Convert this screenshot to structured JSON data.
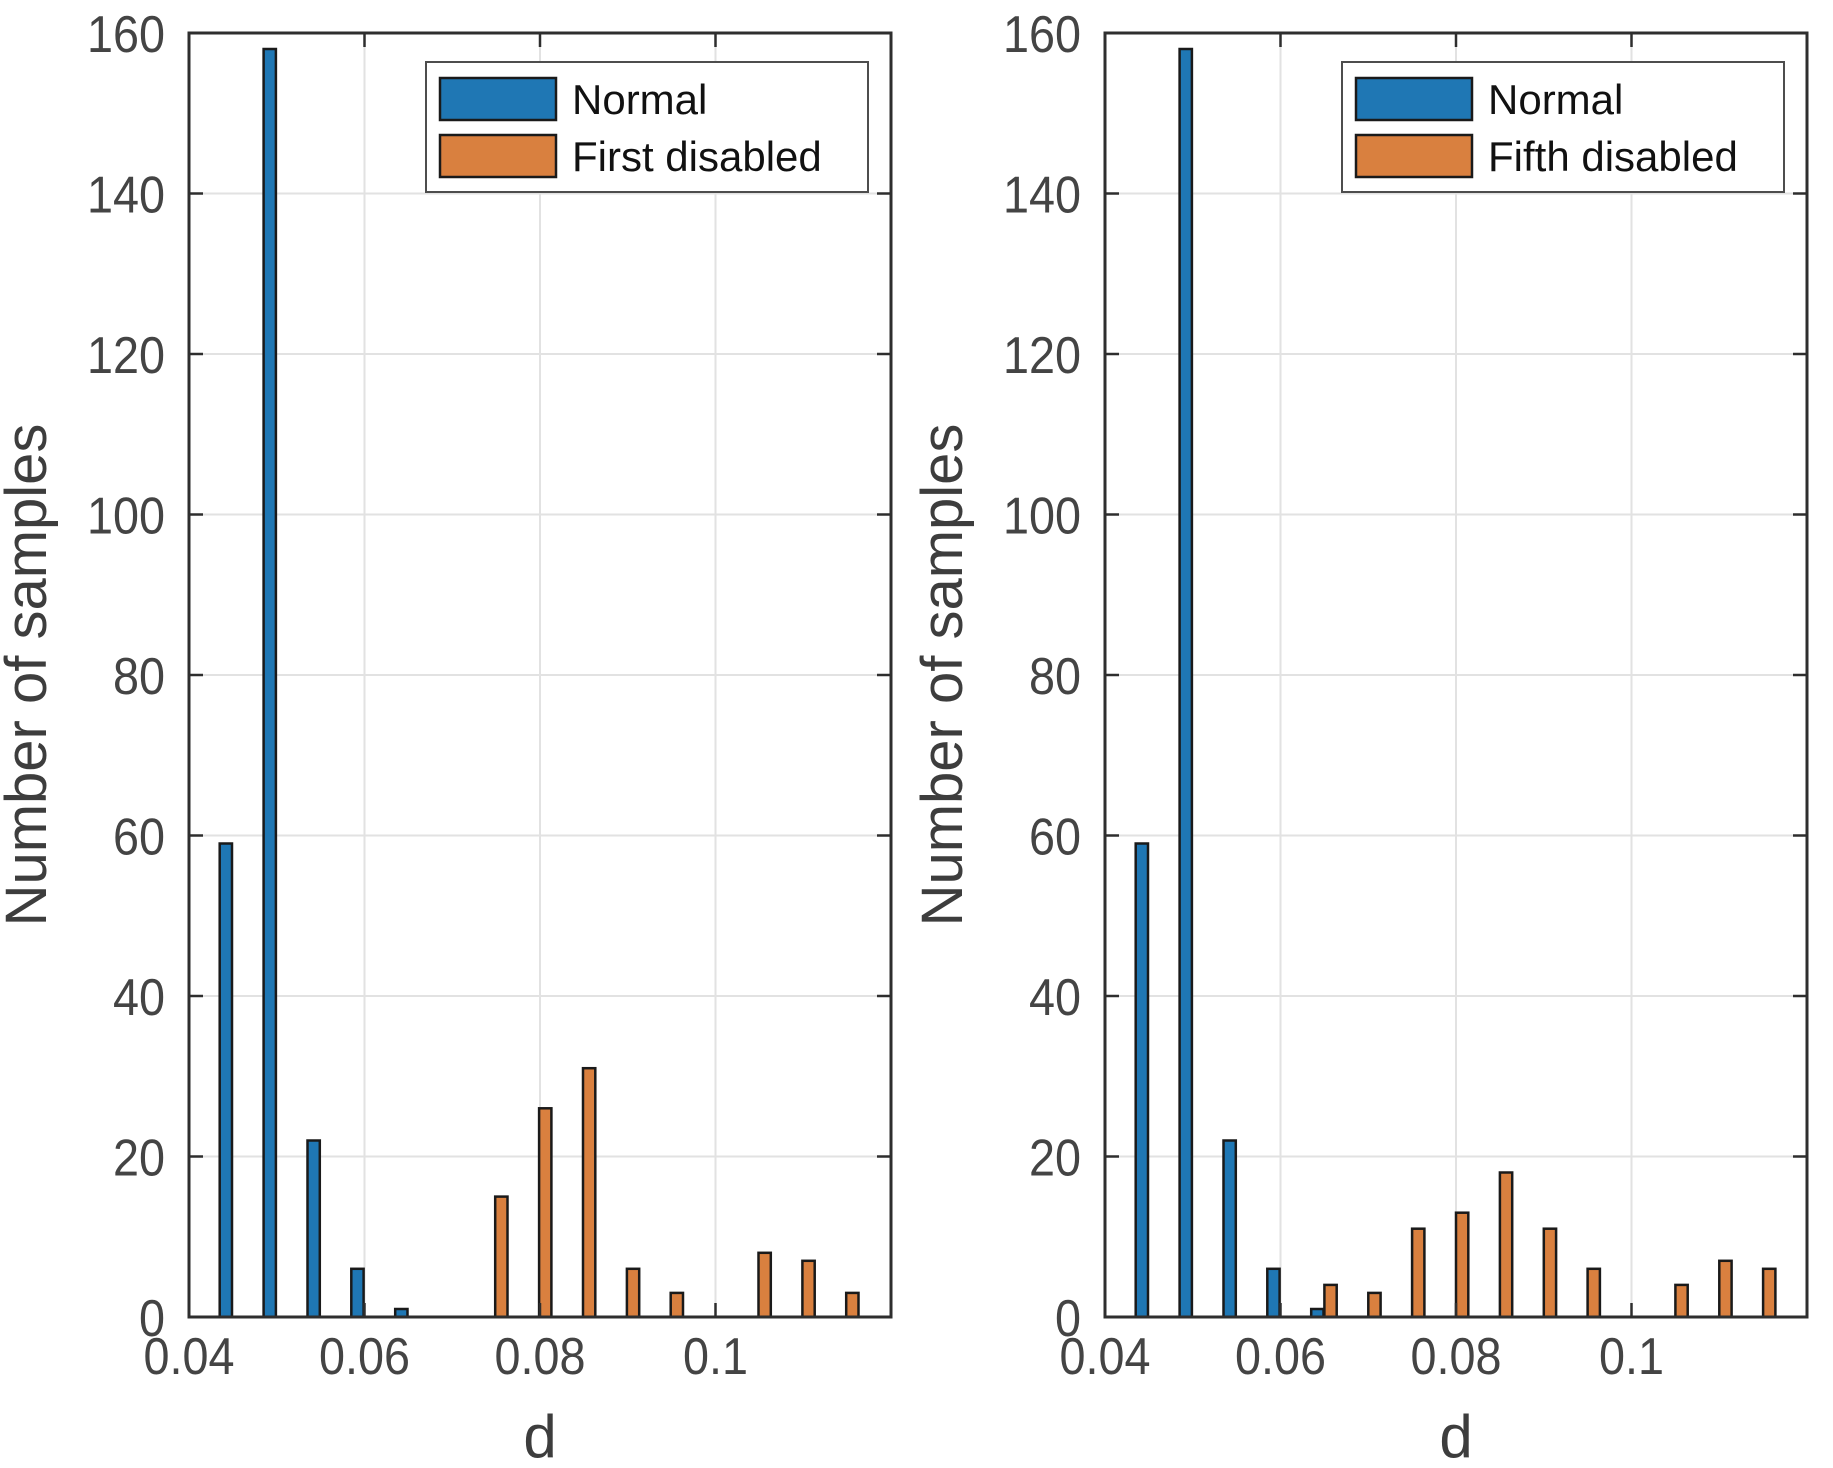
{
  "figure": {
    "background": "#ffffff",
    "box_color": "#2e2e2e",
    "grid_color": "#e2e2e2",
    "tick_label_color": "#444444",
    "axis_label_color": "#3d3d3d",
    "legend_text_color": "#111111",
    "legend_border_color": "#4d4d4d",
    "bar_edge_color": "#1a1a1a",
    "series_colors": {
      "normal": "#1f77b4",
      "disabled": "#d9803f"
    }
  },
  "chart_data": [
    {
      "type": "bar",
      "title": "",
      "xlabel": "d",
      "ylabel": "Number of samples",
      "xlim": [
        0.04,
        0.12
      ],
      "ylim": [
        0,
        160
      ],
      "grid": true,
      "xticks": [
        0.04,
        0.06,
        0.08,
        0.1
      ],
      "xtick_labels": [
        "0.04",
        "0.06",
        "0.08",
        "0.1"
      ],
      "yticks": [
        0,
        20,
        40,
        60,
        80,
        100,
        120,
        140,
        160
      ],
      "ytick_labels": [
        "0",
        "20",
        "40",
        "60",
        "80",
        "100",
        "120",
        "140",
        "160"
      ],
      "legend_position": "northeast",
      "legend": [
        "Normal",
        "First disabled"
      ],
      "bar_width": 0.0014,
      "series": [
        {
          "name": "Normal",
          "color_key": "normal",
          "x": [
            0.0442,
            0.0492,
            0.0542,
            0.0592,
            0.0642
          ],
          "values": [
            59,
            158,
            22,
            6,
            1
          ]
        },
        {
          "name": "First disabled",
          "color_key": "disabled",
          "x": [
            0.0756,
            0.0806,
            0.0856,
            0.0906,
            0.0956,
            0.1056,
            0.1106,
            0.1156
          ],
          "values": [
            15,
            26,
            31,
            6,
            3,
            8,
            7,
            3
          ]
        }
      ]
    },
    {
      "type": "bar",
      "title": "",
      "xlabel": "d",
      "ylabel": "Number of samples",
      "xlim": [
        0.04,
        0.12
      ],
      "ylim": [
        0,
        160
      ],
      "grid": true,
      "xticks": [
        0.04,
        0.06,
        0.08,
        0.1
      ],
      "xtick_labels": [
        "0.04",
        "0.06",
        "0.08",
        "0.1"
      ],
      "yticks": [
        0,
        20,
        40,
        60,
        80,
        100,
        120,
        140,
        160
      ],
      "ytick_labels": [
        "0",
        "20",
        "40",
        "60",
        "80",
        "100",
        "120",
        "140",
        "160"
      ],
      "legend_position": "northeast",
      "legend": [
        "Normal",
        "Fifth disabled"
      ],
      "bar_width": 0.0014,
      "series": [
        {
          "name": "Normal",
          "color_key": "normal",
          "x": [
            0.0442,
            0.0492,
            0.0542,
            0.0592,
            0.0642
          ],
          "values": [
            59,
            158,
            22,
            6,
            1
          ]
        },
        {
          "name": "Fifth disabled",
          "color_key": "disabled",
          "x": [
            0.0657,
            0.0707,
            0.0757,
            0.0807,
            0.0857,
            0.0907,
            0.0957,
            0.1057,
            0.1107,
            0.1157
          ],
          "values": [
            4,
            3,
            11,
            13,
            18,
            11,
            6,
            4,
            7,
            6
          ]
        }
      ]
    }
  ]
}
